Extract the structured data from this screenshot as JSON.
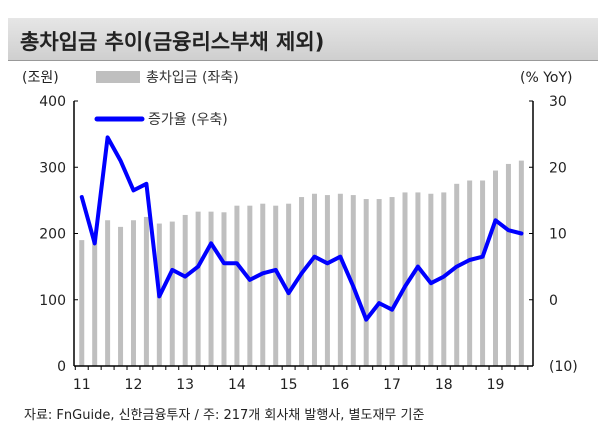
{
  "chart_data": {
    "type": "bar+line",
    "title": "총차입금 추이(금융리스부채 제외)",
    "ylabel_left": "(조원)",
    "ylabel_right": "(% YoY)",
    "ylim_left": [
      0,
      400
    ],
    "ylim_right": [
      -10,
      30
    ],
    "yticks_left": [
      "400",
      "300",
      "200",
      "100",
      "0"
    ],
    "yticks_right": [
      "30",
      "20",
      "10",
      "0",
      "(10)"
    ],
    "xticks": [
      "11",
      "12",
      "13",
      "14",
      "15",
      "16",
      "17",
      "18",
      "19"
    ],
    "series": [
      {
        "name": "총차입금 (좌축)",
        "type": "bar",
        "color": "#bfbfbf",
        "values": [
          190,
          195,
          220,
          210,
          220,
          225,
          215,
          218,
          228,
          233,
          233,
          232,
          242,
          242,
          245,
          242,
          245,
          255,
          260,
          258,
          260,
          258,
          252,
          252,
          255,
          262,
          262,
          260,
          262,
          275,
          280,
          280,
          295,
          305,
          310
        ]
      },
      {
        "name": "증가율 (우축)",
        "type": "line",
        "color": "#0000ff",
        "values": [
          15.5,
          8.5,
          24.5,
          21,
          16.5,
          17.5,
          0.5,
          4.5,
          3.5,
          5,
          8.5,
          5.5,
          5.5,
          3,
          4,
          4.5,
          1,
          4,
          6.5,
          5.5,
          6.5,
          2,
          -3,
          -0.5,
          -1.5,
          2,
          5,
          2.5,
          3.5,
          5,
          6,
          6.5,
          12,
          10.5,
          10
        ]
      }
    ]
  },
  "source": "자료: FnGuide, 신한금융투자 / 주: 217개 회사채 발행사, 별도재무 기준"
}
